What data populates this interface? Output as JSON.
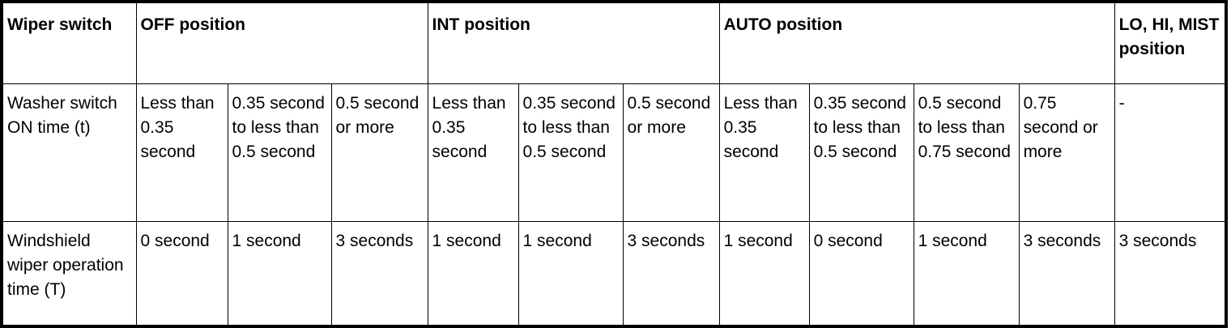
{
  "header": {
    "wiper_switch": "Wiper switch",
    "off": "OFF position",
    "int": "INT position",
    "auto": "AUTO position",
    "lo_hi_mist": "LO, HI, MIST position"
  },
  "washer_row": {
    "label": "Washer switch ON time (t)",
    "cells": [
      "Less than 0.35 second",
      "0.35 second to less than 0.5 second",
      "0.5 second or more",
      "Less than 0.35 second",
      "0.35 second to less than 0.5 second",
      "0.5 second or more",
      "Less than 0.35 second",
      "0.35 second to less than 0.5 second",
      "0.5 second to less than 0.75 second",
      "0.75 second or more",
      "-"
    ]
  },
  "wiper_row": {
    "label": "Windshield wiper operation time (T)",
    "cells": [
      "0 second",
      "1 second",
      "3 seconds",
      "1 second",
      "1 second",
      "3 seconds",
      "1 second",
      "0 second",
      "1 second",
      "3 seconds",
      "3 seconds"
    ]
  }
}
